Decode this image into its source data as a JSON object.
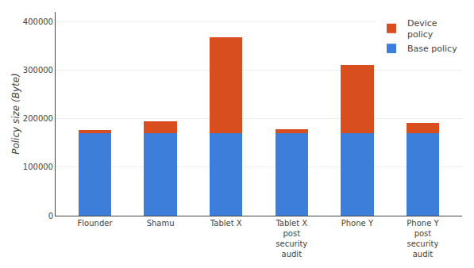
{
  "chart_data": {
    "type": "bar",
    "stacked": true,
    "categories": [
      "Flounder",
      "Shamu",
      "Tablet X",
      "Tablet X\npost\nsecurity\naudit",
      "Phone Y",
      "Phone Y\npost\nsecurity\naudit"
    ],
    "series": [
      {
        "name": "Base policy",
        "color": "#3d7edb",
        "values": [
          170000,
          170000,
          170000,
          170000,
          170000,
          170000
        ]
      },
      {
        "name": "Device\npolicy",
        "color": "#d94e1f",
        "values": [
          7000,
          25000,
          197000,
          8000,
          140000,
          22000
        ]
      }
    ],
    "ylabel": "Policy size (Byte)",
    "ylim": [
      0,
      420000
    ],
    "yticks": [
      0,
      100000,
      200000,
      300000,
      400000
    ],
    "grid": true,
    "legend": "upper right"
  }
}
